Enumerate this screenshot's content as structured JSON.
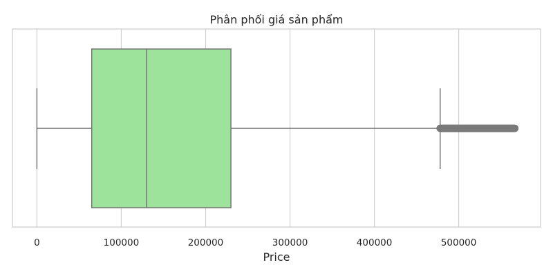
{
  "chart_data": {
    "type": "box",
    "title": "Phân phối giá sản phẩm",
    "xlabel": "Price",
    "ylabel": "",
    "xlim": [
      -29000,
      597000
    ],
    "xticks": [
      0,
      100000,
      200000,
      300000,
      400000,
      500000
    ],
    "xtick_labels": [
      "0",
      "100000",
      "200000",
      "300000",
      "400000",
      "500000"
    ],
    "grid": true,
    "orientation": "horizontal",
    "box": {
      "whisker_low": 0,
      "q1": 65000,
      "median": 130000,
      "q3": 230000,
      "whisker_high": 478000
    },
    "outliers_range": [
      478000,
      567000
    ],
    "colors": {
      "box_fill": "#9de39b",
      "line": "#6e6e6e",
      "outlier": "#7a7a7a",
      "grid": "#d0d0d0",
      "frame": "#cccccc"
    }
  }
}
